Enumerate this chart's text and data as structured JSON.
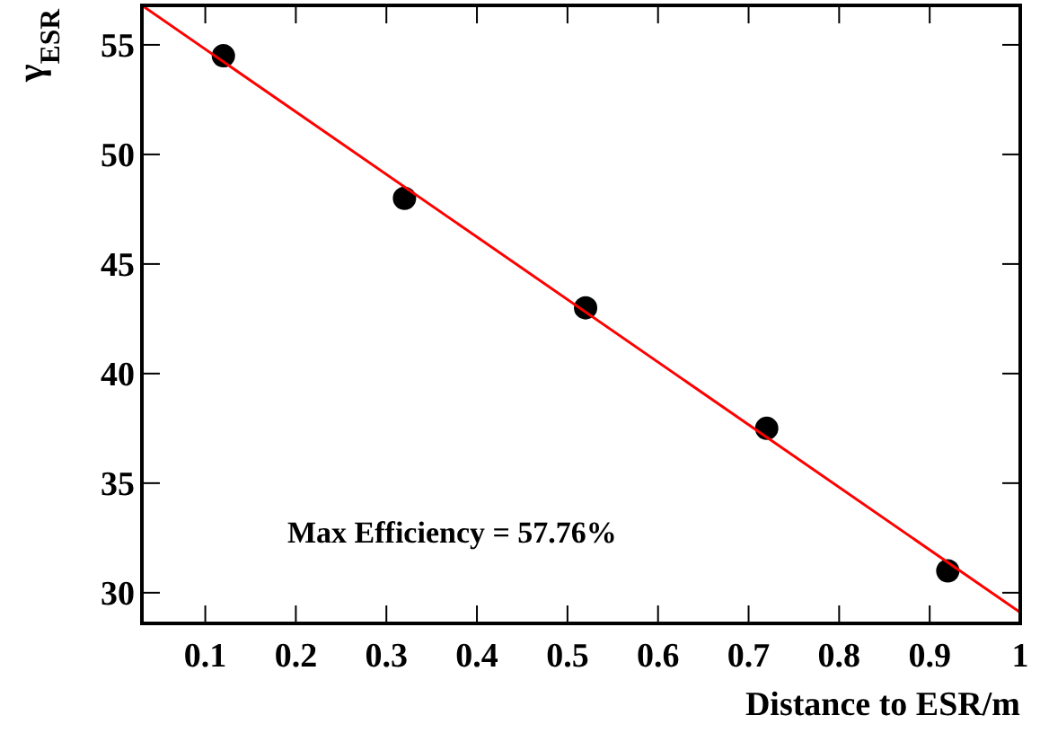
{
  "chart_data": {
    "type": "scatter",
    "xlabel": "Distance to ESR/m",
    "ylabel": "γ$_{ESR}$",
    "x": [
      0.12,
      0.32,
      0.52,
      0.72,
      0.92
    ],
    "series": [
      {
        "color": "#000000",
        "values": [
          54.5,
          48.0,
          43.0,
          37.5,
          31.0
        ],
        "marker": "circle"
      },
      {
        "type": "line",
        "color": "#ff0000",
        "x": [
          0.03,
          1.0
        ],
        "values": [
          56.8,
          29.1
        ],
        "marker": "none"
      }
    ],
    "xlim": [
      0.03,
      1.0
    ],
    "ylim": [
      28.6,
      56.8
    ],
    "xticks": [
      0.1,
      0.2,
      0.3,
      0.4,
      0.5,
      0.6,
      0.7,
      0.8,
      0.9,
      {
        "value": 1.0,
        "label": "1"
      }
    ],
    "yticks": [
      30,
      35,
      40,
      45,
      50,
      55
    ],
    "annotations": [
      "Max Efficiency = 57.76%"
    ],
    "grid": false
  }
}
